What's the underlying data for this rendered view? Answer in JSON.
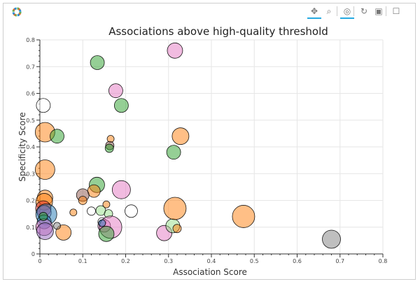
{
  "toolbar": {
    "logo": "bokeh-logo-icon",
    "tools": [
      {
        "name": "pan-tool",
        "icon": "move-arrows-icon",
        "glyph": "✥",
        "active": true
      },
      {
        "name": "box-zoom-tool",
        "icon": "magnifier-icon",
        "glyph": "⌕",
        "active": false
      },
      {
        "name": "wheel-zoom-tool",
        "icon": "wheel-zoom-icon",
        "glyph": "◎",
        "active": true
      },
      {
        "name": "reset-tool",
        "icon": "reset-icon",
        "glyph": "↻",
        "active": false
      },
      {
        "name": "save-tool",
        "icon": "save-icon",
        "glyph": "▣",
        "active": false
      },
      {
        "name": "hover-tool",
        "icon": "hover-icon",
        "glyph": "☐",
        "active": false
      }
    ]
  },
  "chart_data": {
    "type": "scatter",
    "title": "Associations above high-quality threshold",
    "xlabel": "Association Score",
    "ylabel": "Specificity Score",
    "xlim": [
      0,
      0.8
    ],
    "ylim": [
      0,
      0.8
    ],
    "xticks": [
      "0",
      "0.1",
      "0.2",
      "0.3",
      "0.4",
      "0.5",
      "0.6",
      "0.7",
      "0.8"
    ],
    "yticks": [
      "0",
      "0.1",
      "0.2",
      "0.3",
      "0.4",
      "0.5",
      "0.6",
      "0.7",
      "0.8"
    ],
    "grid": true,
    "legend": "none",
    "colors": {
      "blue": "#1f77b4",
      "orange": "#ff7f0e",
      "green": "#2ca02c",
      "red": "#d62728",
      "purple": "#9467bd",
      "brown": "#8c564b",
      "pink": "#e377c2",
      "gray": "#7f7f7f",
      "white": "#ffffff",
      "lightgreen": "#98df8a"
    },
    "points": [
      {
        "x": 0.008,
        "y": 0.555,
        "size": 10,
        "color": "white"
      },
      {
        "x": 0.012,
        "y": 0.455,
        "size": 14,
        "color": "orange"
      },
      {
        "x": 0.04,
        "y": 0.44,
        "size": 10,
        "color": "green"
      },
      {
        "x": 0.012,
        "y": 0.315,
        "size": 14,
        "color": "orange"
      },
      {
        "x": 0.134,
        "y": 0.715,
        "size": 10,
        "color": "green"
      },
      {
        "x": 0.315,
        "y": 0.76,
        "size": 11,
        "color": "pink"
      },
      {
        "x": 0.177,
        "y": 0.61,
        "size": 10,
        "color": "pink"
      },
      {
        "x": 0.19,
        "y": 0.555,
        "size": 10,
        "color": "green"
      },
      {
        "x": 0.165,
        "y": 0.43,
        "size": 5,
        "color": "orange"
      },
      {
        "x": 0.163,
        "y": 0.405,
        "size": 6,
        "color": "brown"
      },
      {
        "x": 0.162,
        "y": 0.395,
        "size": 6,
        "color": "green"
      },
      {
        "x": 0.328,
        "y": 0.44,
        "size": 12,
        "color": "orange"
      },
      {
        "x": 0.312,
        "y": 0.38,
        "size": 10,
        "color": "green"
      },
      {
        "x": 0.133,
        "y": 0.258,
        "size": 11,
        "color": "green"
      },
      {
        "x": 0.126,
        "y": 0.235,
        "size": 9,
        "color": "orange"
      },
      {
        "x": 0.19,
        "y": 0.24,
        "size": 13,
        "color": "pink"
      },
      {
        "x": 0.1,
        "y": 0.22,
        "size": 9,
        "color": "brown"
      },
      {
        "x": 0.1,
        "y": 0.2,
        "size": 6,
        "color": "orange"
      },
      {
        "x": 0.155,
        "y": 0.185,
        "size": 5,
        "color": "orange"
      },
      {
        "x": 0.012,
        "y": 0.21,
        "size": 11,
        "color": "orange"
      },
      {
        "x": 0.01,
        "y": 0.195,
        "size": 12,
        "color": "orange"
      },
      {
        "x": 0.008,
        "y": 0.17,
        "size": 11,
        "color": "red"
      },
      {
        "x": 0.01,
        "y": 0.155,
        "size": 10,
        "color": "pink"
      },
      {
        "x": 0.015,
        "y": 0.148,
        "size": 15,
        "color": "blue"
      },
      {
        "x": 0.01,
        "y": 0.12,
        "size": 10,
        "color": "blue"
      },
      {
        "x": 0.01,
        "y": 0.1,
        "size": 12,
        "color": "pink"
      },
      {
        "x": 0.012,
        "y": 0.085,
        "size": 12,
        "color": "purple"
      },
      {
        "x": 0.008,
        "y": 0.14,
        "size": 6,
        "color": "green"
      },
      {
        "x": 0.055,
        "y": 0.08,
        "size": 11,
        "color": "orange"
      },
      {
        "x": 0.04,
        "y": 0.105,
        "size": 5,
        "color": "gray"
      },
      {
        "x": 0.078,
        "y": 0.155,
        "size": 5,
        "color": "orange"
      },
      {
        "x": 0.12,
        "y": 0.16,
        "size": 6,
        "color": "white"
      },
      {
        "x": 0.142,
        "y": 0.162,
        "size": 7,
        "color": "lightgreen"
      },
      {
        "x": 0.16,
        "y": 0.15,
        "size": 6,
        "color": "lightgreen"
      },
      {
        "x": 0.213,
        "y": 0.16,
        "size": 9,
        "color": "white"
      },
      {
        "x": 0.145,
        "y": 0.12,
        "size": 6,
        "color": "white"
      },
      {
        "x": 0.15,
        "y": 0.105,
        "size": 9,
        "color": "pink"
      },
      {
        "x": 0.165,
        "y": 0.1,
        "size": 16,
        "color": "pink"
      },
      {
        "x": 0.155,
        "y": 0.075,
        "size": 11,
        "color": "green"
      },
      {
        "x": 0.145,
        "y": 0.115,
        "size": 5,
        "color": "blue"
      },
      {
        "x": 0.29,
        "y": 0.078,
        "size": 11,
        "color": "pink"
      },
      {
        "x": 0.31,
        "y": 0.105,
        "size": 10,
        "color": "lightgreen"
      },
      {
        "x": 0.32,
        "y": 0.095,
        "size": 6,
        "color": "orange"
      },
      {
        "x": 0.315,
        "y": 0.17,
        "size": 16,
        "color": "orange"
      },
      {
        "x": 0.475,
        "y": 0.14,
        "size": 16,
        "color": "orange"
      },
      {
        "x": 0.68,
        "y": 0.055,
        "size": 13,
        "color": "gray"
      }
    ]
  }
}
